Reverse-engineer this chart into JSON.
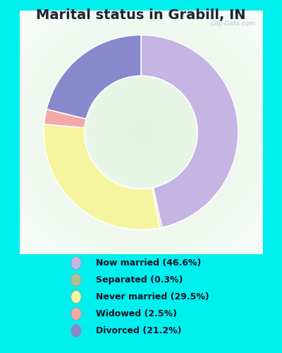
{
  "title": "Marital status in Grabill, IN",
  "background_color": "#00EFEF",
  "chart_bg_gradient": true,
  "slices": [
    {
      "label": "Now married (46.6%)",
      "value": 46.6,
      "color": "#c5b5e3"
    },
    {
      "label": "Separated (0.3%)",
      "value": 0.3,
      "color": "#b0c090"
    },
    {
      "label": "Never married (29.5%)",
      "value": 29.5,
      "color": "#f5f5a0"
    },
    {
      "label": "Widowed (2.5%)",
      "value": 2.5,
      "color": "#f5a8a8"
    },
    {
      "label": "Divorced (21.2%)",
      "value": 21.2,
      "color": "#8888cc"
    }
  ],
  "legend_items": [
    {
      "label": "Now married (46.6%)",
      "color": "#c5b5e3"
    },
    {
      "label": "Separated (0.3%)",
      "color": "#b0c090"
    },
    {
      "label": "Never married (29.5%)",
      "color": "#f5f5a0"
    },
    {
      "label": "Widowed (2.5%)",
      "color": "#f5a8a8"
    },
    {
      "label": "Divorced (21.2%)",
      "color": "#8888cc"
    }
  ],
  "title_fontsize": 14,
  "watermark": "City-Data.com",
  "figsize": [
    4.0,
    5.0
  ],
  "dpi": 100
}
